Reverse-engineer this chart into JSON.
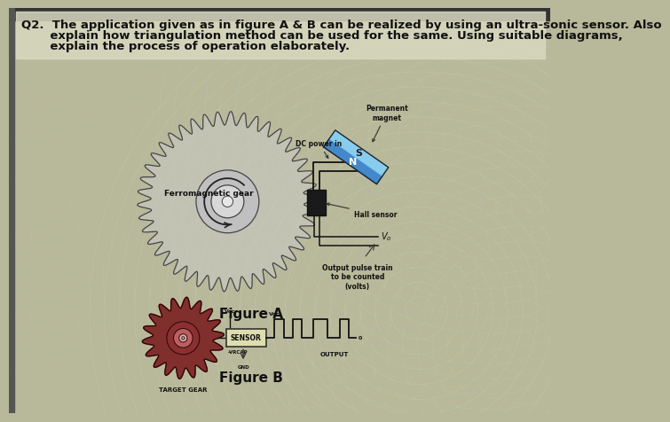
{
  "bg_color": "#b8b89a",
  "title_line1": "Q2.  The application given as in figure A & B can be realized by using an ultra-sonic sensor. Also",
  "title_line2": "       explain how triangulation method can be used for the same. Using suitable diagrams,",
  "title_line3": "       explain the process of operation elaborately.",
  "fig_a_label": "Figure A",
  "fig_b_label": "Figure B",
  "gear_a_color": "#c0c0c0",
  "gear_a_edge": "#444444",
  "gear_b_color": "#6b1a1a",
  "gear_b_edge": "#2a0505",
  "magnet_n_color": "#5599cc",
  "magnet_s_color": "#99ccdd",
  "sensor_box_color": "#e0e0b0",
  "text_color": "#111111"
}
